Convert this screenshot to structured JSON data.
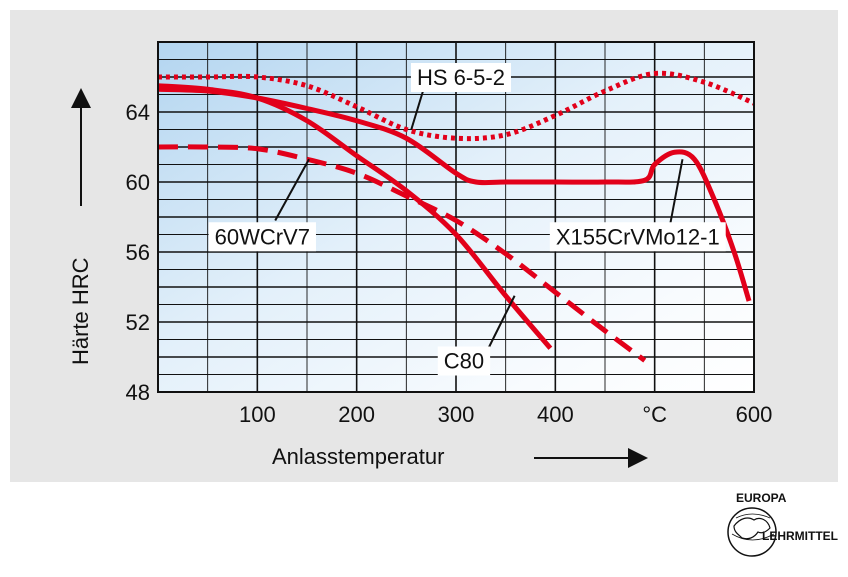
{
  "chart_data": {
    "type": "line",
    "xlabel": "Anlasstemperatur",
    "ylabel": "Härte HRC",
    "xlim": [
      0,
      600
    ],
    "ylim": [
      48,
      68
    ],
    "grid": true,
    "x_ticks": [
      "100",
      "200",
      "300",
      "400",
      "°C",
      "600"
    ],
    "y_ticks": [
      "48",
      "52",
      "56",
      "60",
      "64"
    ],
    "series": [
      {
        "name": "HS 6-5-2",
        "style": "dotted",
        "color": "#e2001a",
        "x": [
          0,
          50,
          100,
          150,
          200,
          250,
          300,
          350,
          400,
          450,
          500,
          550,
          600
        ],
        "y": [
          66,
          66,
          66,
          65.5,
          64.3,
          63,
          62.5,
          62.7,
          63.8,
          65.2,
          66.2,
          65.7,
          64.5
        ]
      },
      {
        "name": "X155CrVMo12-1",
        "style": "solid",
        "color": "#e2001a",
        "x": [
          0,
          50,
          100,
          150,
          200,
          250,
          300,
          320,
          350,
          400,
          450,
          490,
          500,
          520,
          540,
          560,
          580,
          595
        ],
        "y": [
          65.3,
          65.2,
          64.8,
          64.2,
          63.5,
          62.5,
          60.5,
          60,
          60,
          60,
          60,
          60.1,
          61,
          61.7,
          61.3,
          59,
          56,
          53.2
        ]
      },
      {
        "name": "C80",
        "style": "solid",
        "color": "#e2001a",
        "x": [
          0,
          50,
          100,
          150,
          200,
          250,
          300,
          350,
          395
        ],
        "y": [
          65.5,
          65.3,
          64.8,
          63.5,
          61.5,
          59.5,
          57,
          53.5,
          50.5
        ]
      },
      {
        "name": "60WCrV7",
        "style": "dashed",
        "color": "#e2001a",
        "x": [
          0,
          50,
          100,
          150,
          200,
          250,
          300,
          350,
          400,
          450,
          490
        ],
        "y": [
          62,
          62,
          61.9,
          61.3,
          60.5,
          59.2,
          57.8,
          55.9,
          53.7,
          51.5,
          49.8
        ]
      }
    ],
    "annotations": [
      "HS 6-5-2",
      "X155CrVMo12-1",
      "60WCrV7",
      "C80"
    ]
  },
  "logo": {
    "top": "EUROPA",
    "bottom": "LEHRMITTEL"
  }
}
